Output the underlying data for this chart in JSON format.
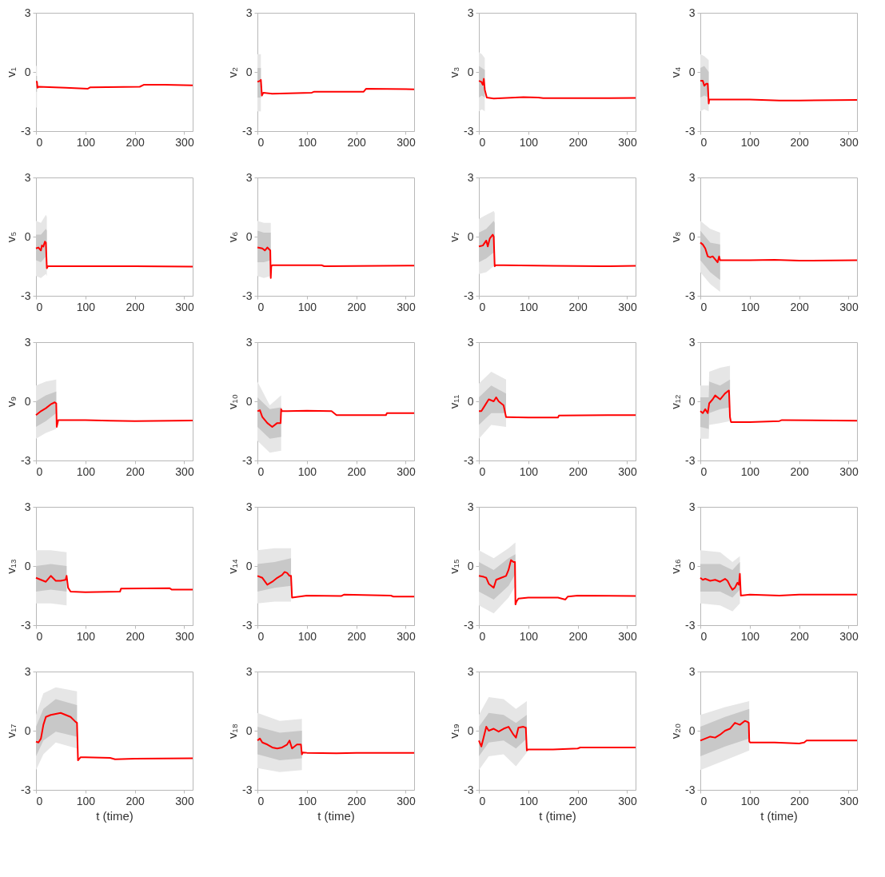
{
  "chart_data": [
    {
      "type": "line",
      "ylabel": "v₁",
      "xlim": [
        0,
        317
      ],
      "ylim": [
        -3,
        3
      ],
      "xticks": [
        0,
        100,
        200,
        300
      ],
      "yticks": [
        -3,
        0,
        3
      ],
      "grid": false,
      "series": [
        {
          "color": "#e6e6e6",
          "x": [
            0,
            2
          ],
          "values": [
            null,
            null
          ],
          "lower": [
            -1.8,
            -1.8
          ],
          "upper": [
            0.3,
            0.3
          ]
        },
        {
          "color": "#c8c8c8",
          "x": [
            0,
            2
          ],
          "values": [
            null,
            null
          ],
          "lower": [
            -1.0,
            -1.0
          ],
          "upper": [
            -0.2,
            -0.2
          ]
        },
        {
          "color": "#ff0000",
          "x": [
            0,
            2,
            3,
            5,
            60,
            105,
            110,
            210,
            218,
            260,
            317
          ],
          "values": [
            -0.5,
            -0.5,
            -0.8,
            -0.75,
            -0.8,
            -0.85,
            -0.78,
            -0.75,
            -0.65,
            -0.65,
            -0.68
          ]
        }
      ]
    },
    {
      "type": "line",
      "ylabel": "v₂",
      "xlim": [
        0,
        317
      ],
      "ylim": [
        -3,
        3
      ],
      "xticks": [
        0,
        100,
        200,
        300
      ],
      "yticks": [
        -3,
        0,
        3
      ],
      "grid": false,
      "series": [
        {
          "color": "#e6e6e6",
          "x": [
            0,
            5,
            7
          ],
          "values": [
            null,
            null,
            null
          ],
          "lower": [
            -2,
            -2,
            -2
          ],
          "upper": [
            0.9,
            0.9,
            0.9
          ]
        },
        {
          "color": "#c8c8c8",
          "x": [
            0,
            5,
            7
          ],
          "values": [
            null,
            null,
            null
          ],
          "lower": [
            -1.3,
            -1.3,
            -1.3
          ],
          "upper": [
            0.2,
            0.2,
            0.2
          ]
        },
        {
          "color": "#ff0000",
          "x": [
            0,
            5,
            7,
            9,
            12,
            30,
            110,
            115,
            215,
            220,
            317
          ],
          "values": [
            -0.5,
            -0.45,
            -0.4,
            -1.2,
            -1.05,
            -1.1,
            -1.05,
            -1.0,
            -1.0,
            -0.85,
            -0.88
          ]
        }
      ]
    },
    {
      "type": "line",
      "ylabel": "v₃",
      "xlim": [
        0,
        317
      ],
      "ylim": [
        -3,
        3
      ],
      "xticks": [
        0,
        100,
        200,
        300
      ],
      "yticks": [
        -3,
        0,
        3
      ],
      "grid": false,
      "series": [
        {
          "color": "#e6e6e6",
          "x": [
            0,
            6,
            12
          ],
          "values": [
            null,
            null,
            null
          ],
          "lower": [
            -2,
            -1.9,
            -2
          ],
          "upper": [
            1,
            0.9,
            0.7
          ]
        },
        {
          "color": "#c8c8c8",
          "x": [
            0,
            6,
            12
          ],
          "values": [
            null,
            null,
            null
          ],
          "lower": [
            -1.3,
            -1.2,
            -1.3
          ],
          "upper": [
            0.3,
            0.2,
            0.1
          ]
        },
        {
          "color": "#ff0000",
          "x": [
            0,
            5,
            8,
            10,
            12,
            16,
            30,
            90,
            120,
            130,
            317
          ],
          "values": [
            -0.45,
            -0.5,
            -0.65,
            -0.35,
            -0.9,
            -1.3,
            -1.35,
            -1.28,
            -1.3,
            -1.33,
            -1.32
          ]
        }
      ]
    },
    {
      "type": "line",
      "ylabel": "v₄",
      "xlim": [
        0,
        317
      ],
      "ylim": [
        -3,
        3
      ],
      "xticks": [
        0,
        100,
        200,
        300
      ],
      "yticks": [
        -3,
        0,
        3
      ],
      "grid": false,
      "series": [
        {
          "color": "#e6e6e6",
          "x": [
            0,
            8,
            17
          ],
          "values": [
            null,
            null,
            null
          ],
          "lower": [
            -2,
            -1.9,
            -2
          ],
          "upper": [
            0.9,
            0.8,
            0.6
          ]
        },
        {
          "color": "#c8c8c8",
          "x": [
            0,
            8,
            17
          ],
          "values": [
            null,
            null,
            null
          ],
          "lower": [
            -1.3,
            -1.2,
            -1.3
          ],
          "upper": [
            0.2,
            0.3,
            0
          ]
        },
        {
          "color": "#ff0000",
          "x": [
            0,
            5,
            8,
            12,
            15,
            17,
            18,
            30,
            100,
            160,
            200,
            317
          ],
          "values": [
            -0.45,
            -0.45,
            -0.7,
            -0.6,
            -0.6,
            -1.6,
            -1.4,
            -1.4,
            -1.4,
            -1.45,
            -1.45,
            -1.42
          ]
        }
      ]
    },
    {
      "type": "line",
      "ylabel": "v₅",
      "xlim": [
        0,
        317
      ],
      "ylim": [
        -3,
        3
      ],
      "xticks": [
        0,
        100,
        200,
        300
      ],
      "yticks": [
        -3,
        0,
        3
      ],
      "grid": false,
      "series": [
        {
          "color": "#e6e6e6",
          "x": [
            0,
            10,
            20,
            22
          ],
          "values": [
            null,
            null,
            null,
            null
          ],
          "lower": [
            -2,
            -2.1,
            -1.9,
            -2
          ],
          "upper": [
            0.8,
            0.7,
            1.1,
            1
          ]
        },
        {
          "color": "#c8c8c8",
          "x": [
            0,
            10,
            20,
            22
          ],
          "values": [
            null,
            null,
            null,
            null
          ],
          "lower": [
            -1.2,
            -1.3,
            -1.0,
            -1.1
          ],
          "upper": [
            0.1,
            0.1,
            0.4,
            0.3
          ]
        },
        {
          "color": "#ff0000",
          "x": [
            0,
            5,
            10,
            12,
            15,
            18,
            20,
            22,
            24,
            30,
            100,
            200,
            317
          ],
          "values": [
            -0.6,
            -0.55,
            -0.7,
            -0.45,
            -0.5,
            -0.25,
            -0.3,
            -1.6,
            -1.5,
            -1.5,
            -1.5,
            -1.5,
            -1.52
          ]
        }
      ]
    },
    {
      "type": "line",
      "ylabel": "v₆",
      "xlim": [
        0,
        317
      ],
      "ylim": [
        -3,
        3
      ],
      "xticks": [
        0,
        100,
        200,
        300
      ],
      "yticks": [
        -3,
        0,
        3
      ],
      "grid": false,
      "series": [
        {
          "color": "#e6e6e6",
          "x": [
            0,
            13,
            27
          ],
          "values": [
            null,
            null,
            null
          ],
          "lower": [
            -2,
            -2.1,
            -2
          ],
          "upper": [
            0.8,
            0.7,
            0.7
          ]
        },
        {
          "color": "#c8c8c8",
          "x": [
            0,
            13,
            27
          ],
          "values": [
            null,
            null,
            null
          ],
          "lower": [
            -1.3,
            -1.3,
            -1.2
          ],
          "upper": [
            0.3,
            0.2,
            0.2
          ]
        },
        {
          "color": "#ff0000",
          "x": [
            0,
            10,
            15,
            20,
            26,
            27,
            28,
            30,
            100,
            130,
            135,
            317
          ],
          "values": [
            -0.55,
            -0.6,
            -0.7,
            -0.55,
            -0.7,
            -2.1,
            -1.5,
            -1.45,
            -1.45,
            -1.45,
            -1.5,
            -1.47
          ]
        }
      ]
    },
    {
      "type": "line",
      "ylabel": "v₇",
      "xlim": [
        0,
        317
      ],
      "ylim": [
        -3,
        3
      ],
      "xticks": [
        0,
        100,
        200,
        300
      ],
      "yticks": [
        -3,
        0,
        3
      ],
      "grid": false,
      "series": [
        {
          "color": "#e6e6e6",
          "x": [
            0,
            15,
            30,
            32
          ],
          "values": [
            null,
            null,
            null,
            null
          ],
          "lower": [
            -1.9,
            -1.8,
            -1.5,
            -1.6
          ],
          "upper": [
            0.9,
            1.1,
            1.3,
            1.2
          ]
        },
        {
          "color": "#c8c8c8",
          "x": [
            0,
            15,
            30,
            32
          ],
          "values": [
            null,
            null,
            null,
            null
          ],
          "lower": [
            -1.3,
            -1.1,
            -0.8,
            -0.8
          ],
          "upper": [
            0.2,
            0.4,
            0.8,
            0.7
          ]
        },
        {
          "color": "#ff0000",
          "x": [
            0,
            8,
            15,
            18,
            22,
            28,
            30,
            32,
            34,
            50,
            150,
            250,
            317
          ],
          "values": [
            -0.5,
            -0.45,
            -0.2,
            -0.5,
            -0.1,
            0.1,
            0.0,
            -1.5,
            -1.45,
            -1.45,
            -1.48,
            -1.5,
            -1.48
          ]
        }
      ]
    },
    {
      "type": "line",
      "ylabel": "v₈",
      "xlim": [
        0,
        317
      ],
      "ylim": [
        -3,
        3
      ],
      "xticks": [
        0,
        100,
        200,
        300
      ],
      "yticks": [
        -3,
        0,
        3
      ],
      "grid": false,
      "series": [
        {
          "color": "#e6e6e6",
          "x": [
            0,
            20,
            40
          ],
          "values": [
            null,
            null,
            null
          ],
          "lower": [
            -1.8,
            -2.4,
            -2.8
          ],
          "upper": [
            0.8,
            0.4,
            0.2
          ]
        },
        {
          "color": "#c8c8c8",
          "x": [
            0,
            20,
            40
          ],
          "values": [
            null,
            null,
            null
          ],
          "lower": [
            -1.2,
            -1.8,
            -2.2
          ],
          "upper": [
            0.3,
            -0.3,
            -0.4
          ]
        },
        {
          "color": "#ff0000",
          "x": [
            0,
            5,
            10,
            15,
            20,
            25,
            30,
            35,
            38,
            40,
            45,
            100,
            150,
            200,
            317
          ],
          "values": [
            -0.3,
            -0.4,
            -0.6,
            -1.0,
            -1.05,
            -1.0,
            -1.15,
            -1.3,
            -1.0,
            -1.2,
            -1.2,
            -1.2,
            -1.18,
            -1.22,
            -1.2
          ]
        }
      ]
    },
    {
      "type": "line",
      "ylabel": "v₉",
      "xlim": [
        0,
        317
      ],
      "ylim": [
        -3,
        3
      ],
      "xticks": [
        0,
        100,
        200,
        300
      ],
      "yticks": [
        -3,
        0,
        3
      ],
      "grid": false,
      "series": [
        {
          "color": "#e6e6e6",
          "x": [
            0,
            20,
            41
          ],
          "values": [
            null,
            null,
            null
          ],
          "lower": [
            -1.9,
            -1.6,
            -1.4
          ],
          "upper": [
            0.8,
            1.0,
            1.1
          ]
        },
        {
          "color": "#c8c8c8",
          "x": [
            0,
            20,
            41
          ],
          "values": [
            null,
            null,
            null
          ],
          "lower": [
            -1.3,
            -1.0,
            -0.6
          ],
          "upper": [
            0,
            0.3,
            0.5
          ]
        },
        {
          "color": "#ff0000",
          "x": [
            0,
            10,
            20,
            30,
            38,
            41,
            42,
            45,
            100,
            150,
            200,
            317
          ],
          "values": [
            -0.7,
            -0.5,
            -0.35,
            -0.15,
            -0.05,
            -0.1,
            -1.3,
            -0.95,
            -0.95,
            -0.98,
            -1.0,
            -0.97
          ]
        }
      ]
    },
    {
      "type": "line",
      "ylabel": "v₁₀",
      "xlim": [
        0,
        317
      ],
      "ylim": [
        -3,
        3
      ],
      "xticks": [
        0,
        100,
        200,
        300
      ],
      "yticks": [
        -3,
        0,
        3
      ],
      "grid": false,
      "series": [
        {
          "color": "#e6e6e6",
          "x": [
            0,
            25,
            48
          ],
          "values": [
            null,
            null,
            null
          ],
          "lower": [
            -2,
            -2.6,
            -2.5
          ],
          "upper": [
            1,
            -0.2,
            0.3
          ]
        },
        {
          "color": "#c8c8c8",
          "x": [
            0,
            25,
            48
          ],
          "values": [
            null,
            null,
            null
          ],
          "lower": [
            -1.3,
            -1.9,
            -1.8
          ],
          "upper": [
            0.2,
            -0.4,
            -0.3
          ]
        },
        {
          "color": "#ff0000",
          "x": [
            0,
            5,
            10,
            20,
            30,
            40,
            47,
            48,
            50,
            60,
            100,
            150,
            160,
            260,
            262,
            317
          ],
          "values": [
            -0.5,
            -0.45,
            -0.8,
            -1.1,
            -1.3,
            -1.1,
            -1.1,
            -0.4,
            -0.5,
            -0.5,
            -0.48,
            -0.5,
            -0.7,
            -0.7,
            -0.6,
            -0.6
          ]
        }
      ]
    },
    {
      "type": "line",
      "ylabel": "v₁₁",
      "xlim": [
        0,
        317
      ],
      "ylim": [
        -3,
        3
      ],
      "xticks": [
        0,
        100,
        200,
        300
      ],
      "yticks": [
        -3,
        0,
        3
      ],
      "grid": false,
      "series": [
        {
          "color": "#e6e6e6",
          "x": [
            0,
            25,
            55
          ],
          "values": [
            null,
            null,
            null
          ],
          "lower": [
            -1.9,
            -1.2,
            -1.3
          ],
          "upper": [
            0.9,
            1.5,
            1.1
          ]
        },
        {
          "color": "#c8c8c8",
          "x": [
            0,
            25,
            55
          ],
          "values": [
            null,
            null,
            null
          ],
          "lower": [
            -1.2,
            -0.6,
            -0.6
          ],
          "upper": [
            0.2,
            0.8,
            0.4
          ]
        },
        {
          "color": "#ff0000",
          "x": [
            0,
            5,
            10,
            20,
            30,
            35,
            40,
            50,
            55,
            57,
            100,
            160,
            162,
            260,
            317
          ],
          "values": [
            -0.5,
            -0.5,
            -0.3,
            0.1,
            0.0,
            0.2,
            0.0,
            -0.2,
            -0.8,
            -0.8,
            -0.82,
            -0.82,
            -0.72,
            -0.7,
            -0.7
          ]
        }
      ]
    },
    {
      "type": "line",
      "ylabel": "v₁₂",
      "xlim": [
        0,
        317
      ],
      "ylim": [
        -3,
        3
      ],
      "xticks": [
        0,
        100,
        200,
        300
      ],
      "yticks": [
        -3,
        0,
        3
      ],
      "grid": false,
      "series": [
        {
          "color": "#e6e6e6",
          "x": [
            0,
            17,
            18,
            40,
            60
          ],
          "values": [
            null,
            null,
            null,
            null,
            null
          ],
          "lower": [
            -1.9,
            -1.9,
            -1.2,
            -1.1,
            -1.0
          ],
          "upper": [
            0.8,
            0.8,
            1.5,
            1.7,
            1.8
          ]
        },
        {
          "color": "#c8c8c8",
          "x": [
            0,
            17,
            18,
            40,
            60
          ],
          "values": [
            null,
            null,
            null,
            null,
            null
          ],
          "lower": [
            -1.3,
            -1.4,
            -0.6,
            -0.4,
            -0.3
          ],
          "upper": [
            0.2,
            0.2,
            1.0,
            0.8,
            1.1
          ]
        },
        {
          "color": "#ff0000",
          "x": [
            0,
            5,
            10,
            15,
            18,
            25,
            30,
            40,
            50,
            55,
            58,
            60,
            62,
            100,
            160,
            165,
            317
          ],
          "values": [
            -0.5,
            -0.6,
            -0.4,
            -0.6,
            -0.1,
            0.1,
            0.3,
            0.1,
            0.4,
            0.5,
            0.55,
            -0.8,
            -1.05,
            -1.05,
            -1.0,
            -0.95,
            -0.98
          ]
        }
      ]
    },
    {
      "type": "line",
      "ylabel": "v₁₃",
      "xlim": [
        0,
        317
      ],
      "ylim": [
        -3,
        3
      ],
      "xticks": [
        0,
        100,
        200,
        300
      ],
      "yticks": [
        -3,
        0,
        3
      ],
      "grid": false,
      "series": [
        {
          "color": "#e6e6e6",
          "x": [
            0,
            30,
            62
          ],
          "values": [
            null,
            null,
            null
          ],
          "lower": [
            -1.9,
            -1.9,
            -2.0
          ],
          "upper": [
            0.8,
            0.8,
            0.7
          ]
        },
        {
          "color": "#c8c8c8",
          "x": [
            0,
            30,
            62
          ],
          "values": [
            null,
            null,
            null
          ],
          "lower": [
            -1.3,
            -1.2,
            -1.3
          ],
          "upper": [
            0,
            0.1,
            0
          ]
        },
        {
          "color": "#ff0000",
          "x": [
            0,
            10,
            20,
            30,
            40,
            50,
            60,
            62,
            65,
            70,
            100,
            170,
            172,
            270,
            275,
            317
          ],
          "values": [
            -0.6,
            -0.7,
            -0.8,
            -0.5,
            -0.75,
            -0.75,
            -0.7,
            -0.5,
            -1.1,
            -1.3,
            -1.33,
            -1.3,
            -1.15,
            -1.12,
            -1.2,
            -1.2
          ]
        }
      ]
    },
    {
      "type": "line",
      "ylabel": "v₁₄",
      "xlim": [
        0,
        317
      ],
      "ylim": [
        -3,
        3
      ],
      "xticks": [
        0,
        100,
        200,
        300
      ],
      "yticks": [
        -3,
        0,
        3
      ],
      "grid": false,
      "series": [
        {
          "color": "#e6e6e6",
          "x": [
            0,
            35,
            68
          ],
          "values": [
            null,
            null,
            null
          ],
          "lower": [
            -1.9,
            -1.8,
            -1.8
          ],
          "upper": [
            0.8,
            0.9,
            0.9
          ]
        },
        {
          "color": "#c8c8c8",
          "x": [
            0,
            35,
            68
          ],
          "values": [
            null,
            null,
            null
          ],
          "lower": [
            -1.3,
            -1.1,
            -1
          ],
          "upper": [
            0.1,
            0.2,
            0.4
          ]
        },
        {
          "color": "#ff0000",
          "x": [
            0,
            10,
            20,
            30,
            40,
            50,
            55,
            60,
            65,
            68,
            70,
            100,
            170,
            175,
            270,
            275,
            317
          ],
          "values": [
            -0.5,
            -0.6,
            -0.95,
            -0.8,
            -0.6,
            -0.45,
            -0.3,
            -0.35,
            -0.5,
            -0.5,
            -1.6,
            -1.5,
            -1.52,
            -1.45,
            -1.5,
            -1.55,
            -1.55
          ]
        }
      ]
    },
    {
      "type": "line",
      "ylabel": "v₁₅",
      "xlim": [
        0,
        317
      ],
      "ylim": [
        -3,
        3
      ],
      "xticks": [
        0,
        100,
        200,
        300
      ],
      "yticks": [
        -3,
        0,
        3
      ],
      "grid": false,
      "series": [
        {
          "color": "#e6e6e6",
          "x": [
            0,
            30,
            60,
            74
          ],
          "values": [
            null,
            null,
            null,
            null
          ],
          "lower": [
            -2,
            -2.4,
            -1.6,
            -1.0
          ],
          "upper": [
            0.8,
            0.4,
            0.9,
            1.2
          ]
        },
        {
          "color": "#c8c8c8",
          "x": [
            0,
            30,
            60,
            74
          ],
          "values": [
            null,
            null,
            null,
            null
          ],
          "lower": [
            -1.3,
            -1.7,
            -1,
            -0.4
          ],
          "upper": [
            0.2,
            -0.2,
            0.4,
            0.6
          ]
        },
        {
          "color": "#ff0000",
          "x": [
            0,
            10,
            15,
            20,
            25,
            30,
            35,
            45,
            55,
            60,
            65,
            70,
            73,
            74,
            76,
            80,
            100,
            160,
            175,
            180,
            200,
            317
          ],
          "values": [
            -0.5,
            -0.55,
            -0.6,
            -0.9,
            -1.0,
            -1.1,
            -0.7,
            -0.6,
            -0.5,
            -0.2,
            0.3,
            0.2,
            0.2,
            -1.95,
            -1.8,
            -1.65,
            -1.6,
            -1.6,
            -1.7,
            -1.55,
            -1.5,
            -1.52
          ]
        }
      ]
    },
    {
      "type": "line",
      "ylabel": "v₁₆",
      "xlim": [
        0,
        317
      ],
      "ylim": [
        -3,
        3
      ],
      "xticks": [
        0,
        100,
        200,
        300
      ],
      "yticks": [
        -3,
        0,
        3
      ],
      "grid": false,
      "series": [
        {
          "color": "#e6e6e6",
          "x": [
            0,
            40,
            65,
            80
          ],
          "values": [
            null,
            null,
            null,
            null
          ],
          "lower": [
            -1.9,
            -2,
            -2.3,
            -1.9
          ],
          "upper": [
            0.8,
            0.7,
            0.2,
            0.5
          ]
        },
        {
          "color": "#c8c8c8",
          "x": [
            0,
            40,
            65,
            80
          ],
          "values": [
            null,
            null,
            null,
            null
          ],
          "lower": [
            -1.3,
            -1.3,
            -1.6,
            -1.2
          ],
          "upper": [
            0.1,
            0.1,
            -0.2,
            0.2
          ]
        },
        {
          "color": "#ff0000",
          "x": [
            0,
            5,
            10,
            20,
            30,
            40,
            50,
            55,
            60,
            65,
            70,
            75,
            78,
            80,
            82,
            100,
            160,
            200,
            317
          ],
          "values": [
            -0.6,
            -0.7,
            -0.65,
            -0.75,
            -0.7,
            -0.8,
            -0.65,
            -0.75,
            -1.0,
            -1.2,
            -1.1,
            -0.85,
            -0.95,
            -0.4,
            -1.5,
            -1.45,
            -1.5,
            -1.45,
            -1.45
          ]
        }
      ]
    },
    {
      "type": "line",
      "ylabel": "v₁₇",
      "xlabel": "t (time)",
      "xlim": [
        0,
        317
      ],
      "ylim": [
        -3,
        3
      ],
      "xticks": [
        0,
        100,
        200,
        300
      ],
      "yticks": [
        -3,
        0,
        3
      ],
      "grid": false,
      "series": [
        {
          "color": "#e6e6e6",
          "x": [
            0,
            15,
            40,
            83
          ],
          "values": [
            null,
            null,
            null,
            null
          ],
          "lower": [
            -2,
            -1.2,
            -0.6,
            -0.9
          ],
          "upper": [
            0.8,
            1.9,
            2.2,
            2.0
          ]
        },
        {
          "color": "#c8c8c8",
          "x": [
            0,
            15,
            40,
            83
          ],
          "values": [
            null,
            null,
            null,
            null
          ],
          "lower": [
            -1.3,
            -0.5,
            -0.05,
            -0.3
          ],
          "upper": [
            0.2,
            1.1,
            1.6,
            1.3
          ]
        },
        {
          "color": "#ff0000",
          "x": [
            0,
            5,
            10,
            15,
            20,
            30,
            40,
            50,
            60,
            70,
            80,
            83,
            85,
            90,
            100,
            150,
            160,
            200,
            317
          ],
          "values": [
            -0.55,
            -0.6,
            -0.4,
            0.3,
            0.7,
            0.8,
            0.85,
            0.9,
            0.8,
            0.7,
            0.45,
            0.4,
            -1.5,
            -1.35,
            -1.35,
            -1.38,
            -1.45,
            -1.42,
            -1.4
          ]
        }
      ]
    },
    {
      "type": "line",
      "ylabel": "v₁₈",
      "xlabel": "t (time)",
      "xlim": [
        0,
        317
      ],
      "ylim": [
        -3,
        3
      ],
      "xticks": [
        0,
        100,
        200,
        300
      ],
      "yticks": [
        -3,
        0,
        3
      ],
      "grid": false,
      "series": [
        {
          "color": "#e6e6e6",
          "x": [
            0,
            45,
            90
          ],
          "values": [
            null,
            null,
            null
          ],
          "lower": [
            -1.9,
            -2.1,
            -2.0
          ],
          "upper": [
            0.9,
            0.5,
            0.6
          ]
        },
        {
          "color": "#c8c8c8",
          "x": [
            0,
            45,
            90
          ],
          "values": [
            null,
            null,
            null
          ],
          "lower": [
            -1.2,
            -1.5,
            -1.4
          ],
          "upper": [
            0.2,
            -0.1,
            0
          ]
        },
        {
          "color": "#ff0000",
          "x": [
            0,
            5,
            10,
            20,
            30,
            40,
            50,
            60,
            65,
            70,
            80,
            88,
            90,
            92,
            100,
            160,
            200,
            317
          ],
          "values": [
            -0.5,
            -0.4,
            -0.6,
            -0.7,
            -0.85,
            -0.9,
            -0.85,
            -0.7,
            -0.5,
            -0.9,
            -0.7,
            -0.7,
            -1.2,
            -1.1,
            -1.12,
            -1.15,
            -1.12,
            -1.12
          ]
        }
      ]
    },
    {
      "type": "line",
      "ylabel": "v₁₉",
      "xlabel": "t (time)",
      "xlim": [
        0,
        317
      ],
      "ylim": [
        -3,
        3
      ],
      "xticks": [
        0,
        100,
        200,
        300
      ],
      "yticks": [
        -3,
        0,
        3
      ],
      "grid": false,
      "series": [
        {
          "color": "#e6e6e6",
          "x": [
            0,
            20,
            50,
            75,
            97
          ],
          "values": [
            null,
            null,
            null,
            null,
            null
          ],
          "lower": [
            -2,
            -1.3,
            -1.2,
            -1.8,
            -1.1
          ],
          "upper": [
            0.8,
            1.7,
            1.6,
            1.1,
            1.5
          ]
        },
        {
          "color": "#c8c8c8",
          "x": [
            0,
            20,
            50,
            75,
            97
          ],
          "values": [
            null,
            null,
            null,
            null,
            null
          ],
          "lower": [
            -1.3,
            -0.6,
            -0.5,
            -0.9,
            -0.4
          ],
          "upper": [
            0.2,
            0.9,
            0.8,
            0.4,
            0.8
          ]
        },
        {
          "color": "#ff0000",
          "x": [
            0,
            5,
            10,
            15,
            20,
            30,
            40,
            50,
            60,
            70,
            75,
            80,
            90,
            95,
            97,
            100,
            150,
            200,
            205,
            317
          ],
          "values": [
            -0.5,
            -0.8,
            -0.3,
            0.2,
            0.0,
            0.1,
            -0.05,
            0.1,
            0.2,
            -0.2,
            -0.35,
            0.15,
            0.2,
            0.15,
            -1.0,
            -0.95,
            -0.95,
            -0.9,
            -0.85,
            -0.85
          ]
        }
      ]
    },
    {
      "type": "line",
      "ylabel": "v₂₀",
      "xlabel": "t (time)",
      "xlim": [
        0,
        317
      ],
      "ylim": [
        -3,
        3
      ],
      "xticks": [
        0,
        100,
        200,
        300
      ],
      "yticks": [
        -3,
        0,
        3
      ],
      "grid": false,
      "series": [
        {
          "color": "#e6e6e6",
          "x": [
            0,
            50,
            99
          ],
          "values": [
            null,
            null,
            null
          ],
          "lower": [
            -2,
            -1.5,
            -1.0
          ],
          "upper": [
            0.8,
            1.2,
            1.5
          ]
        },
        {
          "color": "#c8c8c8",
          "x": [
            0,
            50,
            99
          ],
          "values": [
            null,
            null,
            null
          ],
          "lower": [
            -1.3,
            -0.8,
            -0.4
          ],
          "upper": [
            0.2,
            0.7,
            1.1
          ]
        },
        {
          "color": "#ff0000",
          "x": [
            0,
            10,
            20,
            30,
            40,
            50,
            60,
            70,
            80,
            90,
            95,
            98,
            99,
            101,
            150,
            200,
            210,
            215,
            317
          ],
          "values": [
            -0.5,
            -0.4,
            -0.3,
            -0.35,
            -0.2,
            0.0,
            0.1,
            0.4,
            0.3,
            0.5,
            0.45,
            0.4,
            -0.55,
            -0.6,
            -0.6,
            -0.65,
            -0.6,
            -0.5,
            -0.5
          ]
        }
      ]
    }
  ]
}
